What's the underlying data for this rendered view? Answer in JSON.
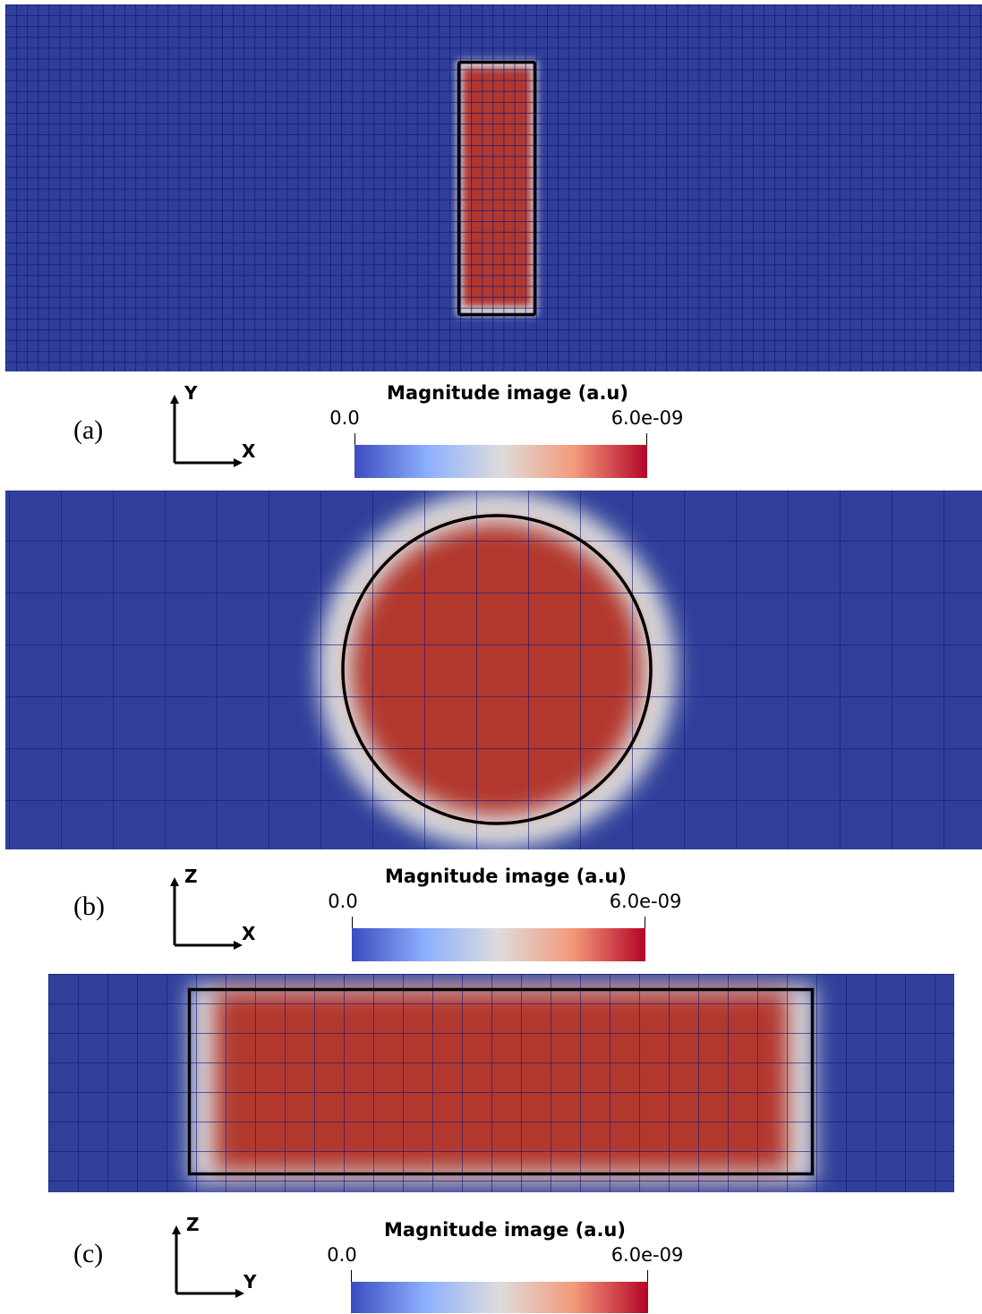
{
  "panels": [
    {
      "label": "(a)",
      "axis_vertical": "Y",
      "axis_horizontal": "X",
      "colorbar": {
        "title": "Magnitude image (a.u)",
        "min_label": "0.0",
        "max_label": "6.0e-09"
      }
    },
    {
      "label": "(b)",
      "axis_vertical": "Z",
      "axis_horizontal": "X",
      "colorbar": {
        "title": "Magnitude image (a.u)",
        "min_label": "0.0",
        "max_label": "6.0e-09"
      }
    },
    {
      "label": "(c)",
      "axis_vertical": "Z",
      "axis_horizontal": "Y",
      "colorbar": {
        "title": "Magnitude image (a.u)",
        "min_label": "0.0",
        "max_label": "6.0e-09"
      }
    }
  ]
}
